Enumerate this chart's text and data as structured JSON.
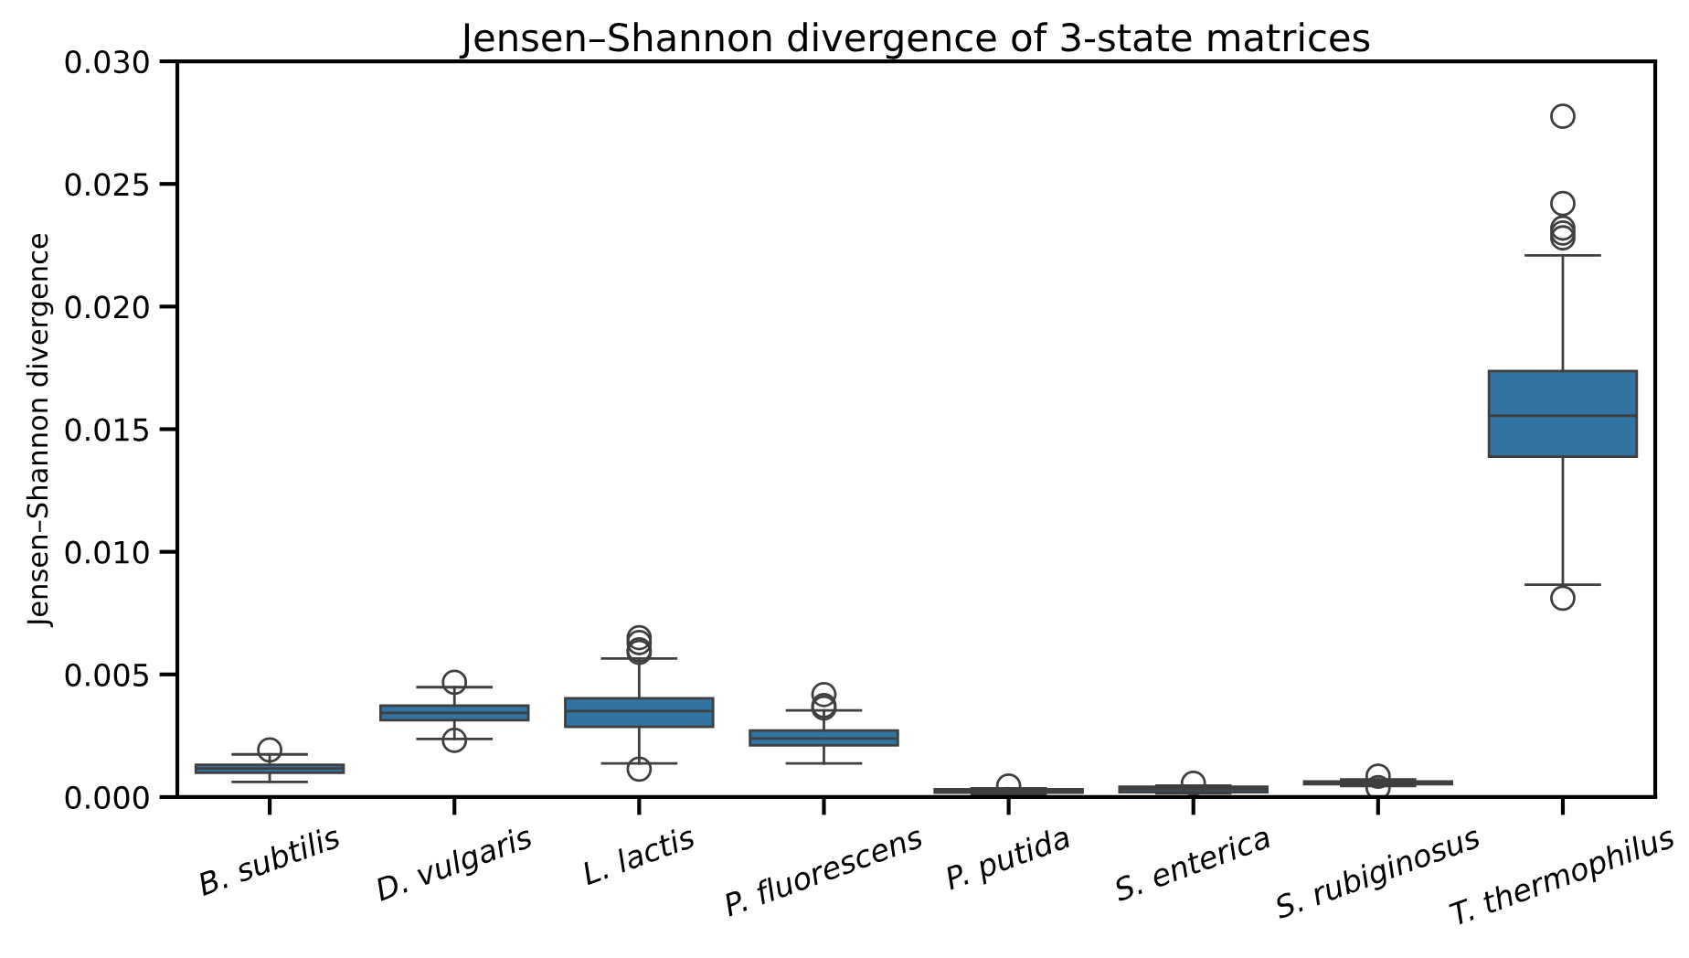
{
  "chart_data": {
    "type": "box",
    "title": "Jensen–Shannon divergence of 3-state matrices",
    "ylabel": "Jensen–Shannon divergence",
    "categories": [
      "B. subtilis",
      "D. vulgaris",
      "L. lactis",
      "P. fluorescens",
      "P. putida",
      "S. enterica",
      "S. rubiginosus",
      "T. thermophilus"
    ],
    "color": "#3274a1",
    "ylim": [
      0,
      0.03
    ],
    "yticks": [
      {
        "value": 0,
        "label": "0.000"
      },
      {
        "value": 0.005,
        "label": "0.005"
      },
      {
        "value": 0.01,
        "label": "0.010"
      },
      {
        "value": 0.015,
        "label": "0.015"
      },
      {
        "value": 0.02,
        "label": "0.020"
      },
      {
        "value": 0.025,
        "label": "0.025"
      },
      {
        "value": 0.03,
        "label": "0.030"
      }
    ],
    "grid": false,
    "boxes": [
      {
        "low": 0.00062,
        "q1": 0.00099,
        "median": 0.00117,
        "q3": 0.00132,
        "high": 0.00174,
        "outliers": [
          0.00192
        ]
      },
      {
        "low": 0.00237,
        "q1": 0.00313,
        "median": 0.00343,
        "q3": 0.00373,
        "high": 0.00448,
        "outliers": [
          0.00468,
          0.00231
        ]
      },
      {
        "low": 0.00137,
        "q1": 0.00286,
        "median": 0.00351,
        "q3": 0.00403,
        "high": 0.00565,
        "outliers": [
          0.0065,
          0.0063,
          0.006,
          0.0059,
          0.00114
        ]
      },
      {
        "low": 0.00137,
        "q1": 0.00211,
        "median": 0.00239,
        "q3": 0.00271,
        "high": 0.00353,
        "outliers": [
          0.00418,
          0.00373,
          0.00363
        ]
      },
      {
        "low": 0.0001,
        "q1": 0.00018,
        "median": 0.00024,
        "q3": 0.00032,
        "high": 0.00036,
        "outliers": [
          0.00045
        ]
      },
      {
        "low": 0.00015,
        "q1": 0.0002,
        "median": 0.00032,
        "q3": 0.00042,
        "high": 0.00047,
        "outliers": [
          0.00056
        ]
      },
      {
        "low": 0.00045,
        "q1": 0.00052,
        "median": 0.00058,
        "q3": 0.00064,
        "high": 0.00072,
        "outliers": [
          0.00085,
          0.00038
        ]
      },
      {
        "low": 0.00866,
        "q1": 0.01388,
        "median": 0.01555,
        "q3": 0.01737,
        "high": 0.02209,
        "outliers": [
          0.02776,
          0.0242,
          0.0232,
          0.023,
          0.0228,
          0.00811
        ]
      }
    ]
  }
}
